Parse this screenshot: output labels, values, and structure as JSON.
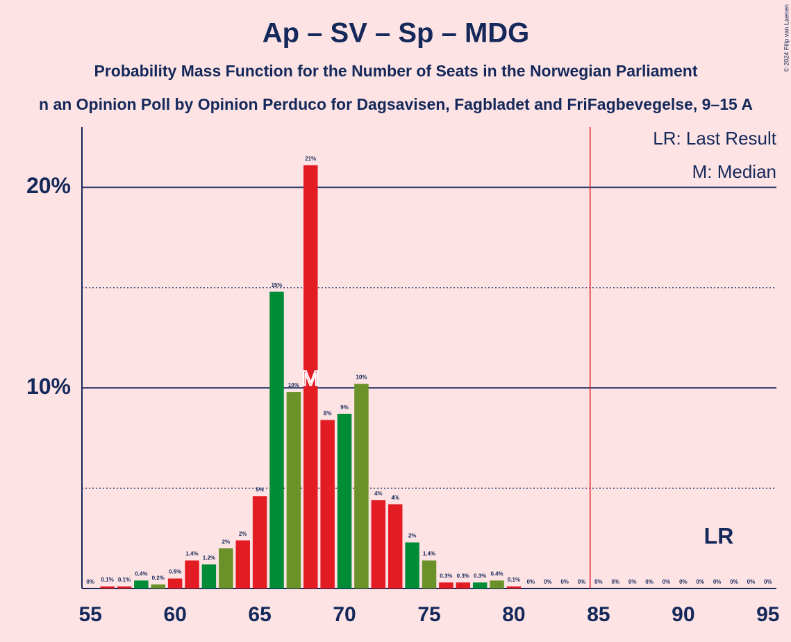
{
  "chart_data": {
    "type": "bar",
    "title": "Ap – SV – Sp – MDG",
    "subtitle": "Probability Mass Function for the Number of Seats in the Norwegian Parliament",
    "subtitle2": "n an Opinion Poll by Opinion Perduco for Dagsavisen, Fagbladet and FriFagbevegelse, 9–15 A",
    "copyright": "© 2024 Filip van Laenen",
    "x": [
      55,
      56,
      57,
      58,
      59,
      60,
      61,
      62,
      63,
      64,
      65,
      66,
      67,
      68,
      69,
      70,
      71,
      72,
      73,
      74,
      75,
      76,
      77,
      78,
      79,
      80,
      81,
      82,
      83,
      84,
      85,
      86,
      87,
      88,
      89,
      90,
      91,
      92,
      93,
      94,
      95
    ],
    "values": [
      0,
      0.1,
      0.1,
      0.4,
      0.2,
      0.5,
      1.4,
      1.2,
      2.0,
      2.4,
      4.6,
      14.8,
      9.8,
      21.1,
      8.4,
      8.7,
      10.2,
      4.4,
      4.2,
      2.3,
      1.4,
      0.3,
      0.3,
      0.3,
      0.4,
      0.1,
      0,
      0,
      0,
      0,
      0,
      0,
      0,
      0,
      0,
      0,
      0,
      0,
      0,
      0,
      0
    ],
    "value_labels": [
      "0%",
      "0.1%",
      "0.1%",
      "0.4%",
      "0.2%",
      "0.5%",
      "1.4%",
      "1.2%",
      "2%",
      "2%",
      "5%",
      "15%",
      "10%",
      "21%",
      "8%",
      "9%",
      "10%",
      "4%",
      "4%",
      "2%",
      "1.4%",
      "0.3%",
      "0.3%",
      "0.3%",
      "0.4%",
      "0.1%",
      "0%",
      "0%",
      "0%",
      "0%",
      "0%",
      "0%",
      "0%",
      "0%",
      "0%",
      "0%",
      "0%",
      "0%",
      "0%",
      "0%",
      "0%"
    ],
    "colors": [
      "#6b9228",
      "#e31b23",
      "#e31b23",
      "#008c37",
      "#6b9228",
      "#e31b23",
      "#e31b23",
      "#008c37",
      "#6b9228",
      "#e31b23",
      "#e31b23",
      "#008c37",
      "#6b9228",
      "#e31b23",
      "#e31b23",
      "#008c37",
      "#6b9228",
      "#e31b23",
      "#e31b23",
      "#008c37",
      "#6b9228",
      "#e31b23",
      "#e31b23",
      "#008c37",
      "#6b9228",
      "#e31b23",
      "#e31b23",
      "#008c37",
      "#6b9228",
      "#e31b23",
      "#e31b23",
      "#008c37",
      "#6b9228",
      "#e31b23",
      "#e31b23",
      "#008c37",
      "#6b9228",
      "#e31b23",
      "#e31b23",
      "#008c37",
      "#6b9228"
    ],
    "xlim": [
      54.5,
      95.5
    ],
    "xticks": [
      55,
      60,
      65,
      70,
      75,
      80,
      85,
      90,
      95
    ],
    "ylim": [
      0,
      23
    ],
    "yticks": [
      {
        "value": 10,
        "label": "10%"
      },
      {
        "value": 20,
        "label": "20%"
      }
    ],
    "minor_yticks": [
      5,
      15
    ],
    "grid": true,
    "median": {
      "x": 68,
      "label": "M"
    },
    "last_result": {
      "x": 84.5,
      "label": "LR"
    },
    "legend": [
      "LR: Last Result",
      "M: Median"
    ],
    "legend_position": "upper right"
  }
}
